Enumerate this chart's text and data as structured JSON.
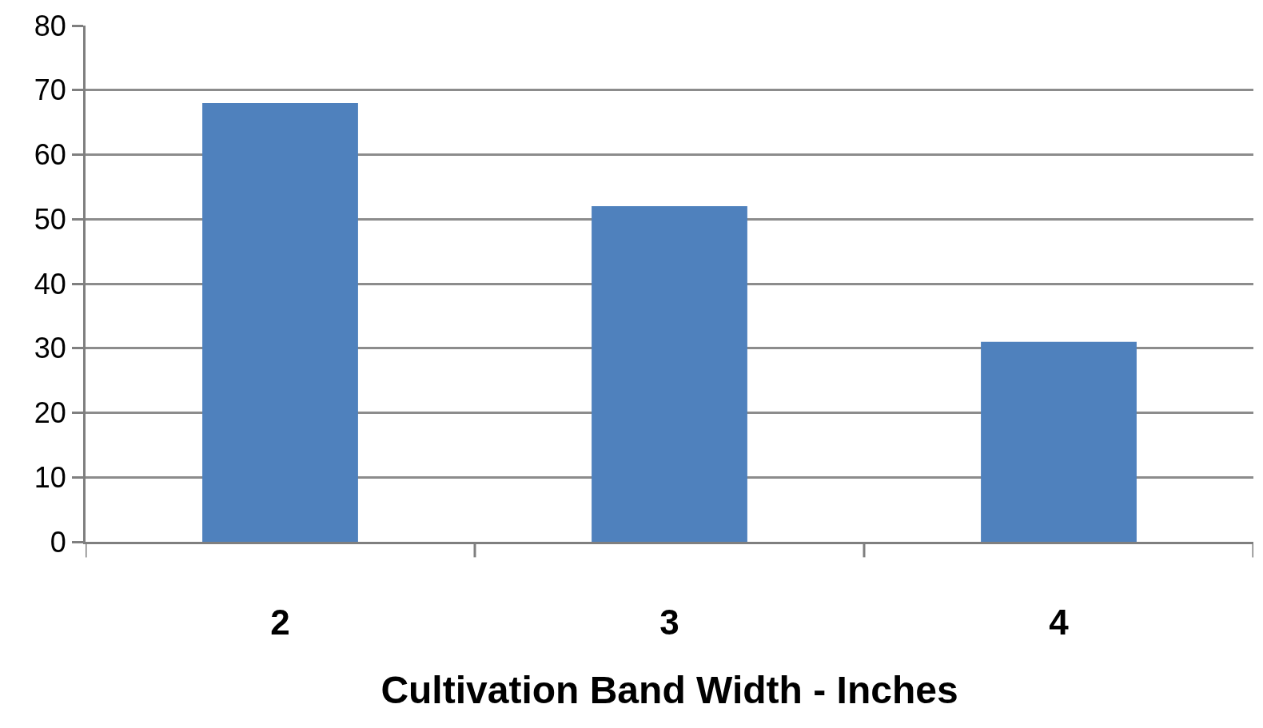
{
  "chart_data": {
    "type": "bar",
    "xlabel": "Cultivation Band Width - Inches",
    "categories": [
      "2",
      "3",
      "4"
    ],
    "series": [
      {
        "color": "#4f81bd",
        "values": [
          68,
          52,
          31
        ]
      }
    ],
    "ylim": [
      0,
      80
    ],
    "yticks": [
      0,
      10,
      20,
      30,
      40,
      50,
      60,
      70,
      80
    ],
    "grid": "y"
  }
}
